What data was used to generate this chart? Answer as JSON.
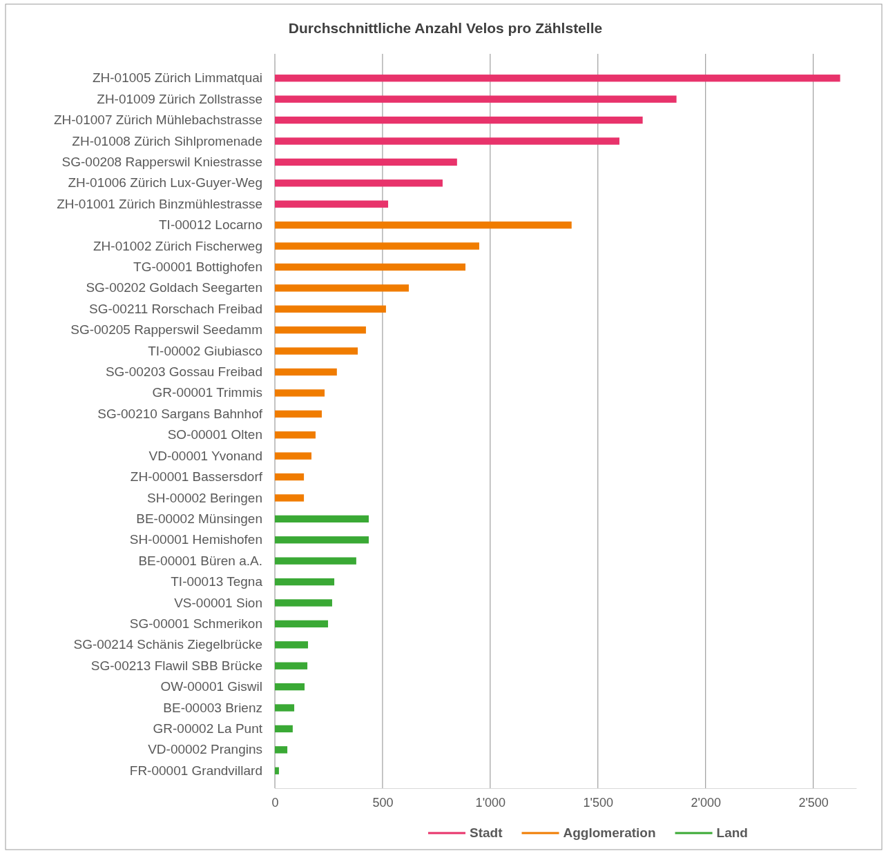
{
  "chart_data": {
    "type": "bar",
    "orientation": "horizontal",
    "title": "Durchschnittliche Anzahl Velos pro Zählstelle",
    "categories": [
      "ZH-01005 Zürich Limmatquai",
      "ZH-01009 Zürich Zollstrasse",
      "ZH-01007 Zürich Mühlebachstrasse",
      "ZH-01008 Zürich Sihlpromenade",
      "SG-00208 Rapperswil Kniestrasse",
      "ZH-01006 Zürich Lux-Guyer-Weg",
      "ZH-01001 Zürich Binzmühlestrasse",
      "TI-00012 Locarno",
      "ZH-01002 Zürich Fischerweg",
      "TG-00001 Bottighofen",
      "SG-00202 Goldach Seegarten",
      "SG-00211 Rorschach Freibad",
      "SG-00205 Rapperswil Seedamm",
      "TI-00002 Giubiasco",
      "SG-00203 Gossau Freibad",
      "GR-00001 Trimmis",
      "SG-00210 Sargans Bahnhof",
      "SO-00001 Olten",
      "VD-00001 Yvonand",
      "ZH-00001 Bassersdorf",
      "SH-00002 Beringen",
      "BE-00002 Münsingen",
      "SH-00001 Hemishofen",
      "BE-00001 Büren a.A.",
      "TI-00013 Tegna",
      "VS-00001 Sion",
      "SG-00001 Schmerikon",
      "SG-00214 Schänis Ziegelbrücke",
      "SG-00213 Flawil SBB Brücke",
      "OW-00001 Giswil",
      "BE-00003 Brienz",
      "GR-00002 La Punt",
      "VD-00002 Prangins",
      "FR-00001 Grandvillard"
    ],
    "series": [
      {
        "name": "Stadt",
        "color": "#e8336b",
        "values": [
          2625,
          1865,
          1708,
          1600,
          846,
          779,
          526,
          null,
          null,
          null,
          null,
          null,
          null,
          null,
          null,
          null,
          null,
          null,
          null,
          null,
          null,
          null,
          null,
          null,
          null,
          null,
          null,
          null,
          null,
          null,
          null,
          null,
          null,
          null
        ]
      },
      {
        "name": "Agglomeration",
        "color": "#f07c00",
        "values": [
          null,
          null,
          null,
          null,
          null,
          null,
          null,
          1378,
          949,
          885,
          622,
          516,
          423,
          385,
          288,
          231,
          218,
          189,
          170,
          135,
          135,
          null,
          null,
          null,
          null,
          null,
          null,
          null,
          null,
          null,
          null,
          null,
          null,
          null
        ]
      },
      {
        "name": "Land",
        "color": "#3aa935",
        "values": [
          null,
          null,
          null,
          null,
          null,
          null,
          null,
          null,
          null,
          null,
          null,
          null,
          null,
          null,
          null,
          null,
          null,
          null,
          null,
          null,
          null,
          436,
          436,
          378,
          276,
          266,
          247,
          154,
          151,
          138,
          90,
          83,
          58,
          19
        ]
      }
    ],
    "xlim": [
      0,
      2700
    ],
    "xticks": [
      0,
      500,
      {
        "value": 1000,
        "label": "1'000"
      },
      {
        "value": 1500,
        "label": "1'500"
      },
      {
        "value": 2000,
        "label": "2'000"
      },
      {
        "value": 2500,
        "label": "2'500"
      }
    ],
    "grid": "x",
    "legend": "bottom"
  }
}
